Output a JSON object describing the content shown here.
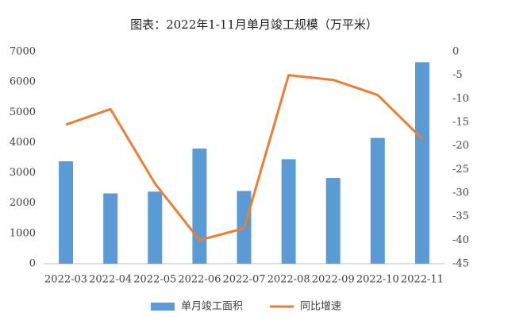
{
  "chart_data": {
    "type": "bar",
    "title": "图表：2022年1-11月单月竣工规模（万平米）",
    "categories": [
      "2022-03",
      "2022-04",
      "2022-05",
      "2022-06",
      "2022-07",
      "2022-08",
      "2022-09",
      "2022-10",
      "2022-11"
    ],
    "series": [
      {
        "name": "单月竣工面积",
        "type": "bar",
        "color": "#5b9bd5",
        "values": [
          3380,
          2320,
          2380,
          3800,
          2400,
          3450,
          2830,
          4150,
          6650
        ]
      },
      {
        "name": "同比增速",
        "type": "line",
        "axis": "y2",
        "color": "#ed7d31",
        "values": [
          -15.5,
          -12.2,
          -28,
          -40,
          -37.5,
          -5,
          -6,
          -9.2,
          -18.5
        ]
      }
    ],
    "ylim": [
      0,
      7000
    ],
    "yticks": [
      0,
      1000,
      2000,
      3000,
      4000,
      5000,
      6000,
      7000
    ],
    "y2lim": [
      -45,
      0
    ],
    "y2ticks": [
      0,
      -5,
      -10,
      -15,
      -20,
      -25,
      -30,
      -35,
      -40,
      -45
    ],
    "grid": false,
    "legend": "bottom"
  }
}
